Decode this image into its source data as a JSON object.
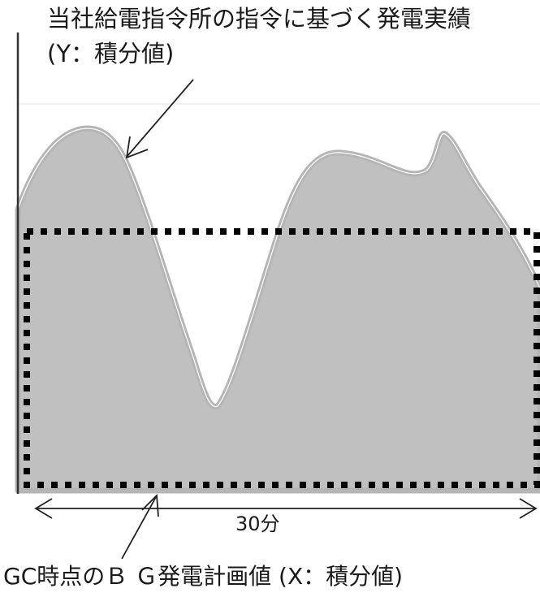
{
  "labels": {
    "actual_line1": "当社給電指令所の指令に基づく発電実績",
    "actual_line2": "(Y：積分値)",
    "plan": "GC時点のＢ Ｇ発電計画値 (X：積分値)",
    "duration": "30分"
  },
  "colors": {
    "actual_fill": "#c0c0c0",
    "actual_edge": "#b5b5b5",
    "actual_highlight": "#ffffff",
    "plan_dots": "#000000",
    "axis": "#333333",
    "arrow": "#222222",
    "gridline": "#ececec"
  }
}
